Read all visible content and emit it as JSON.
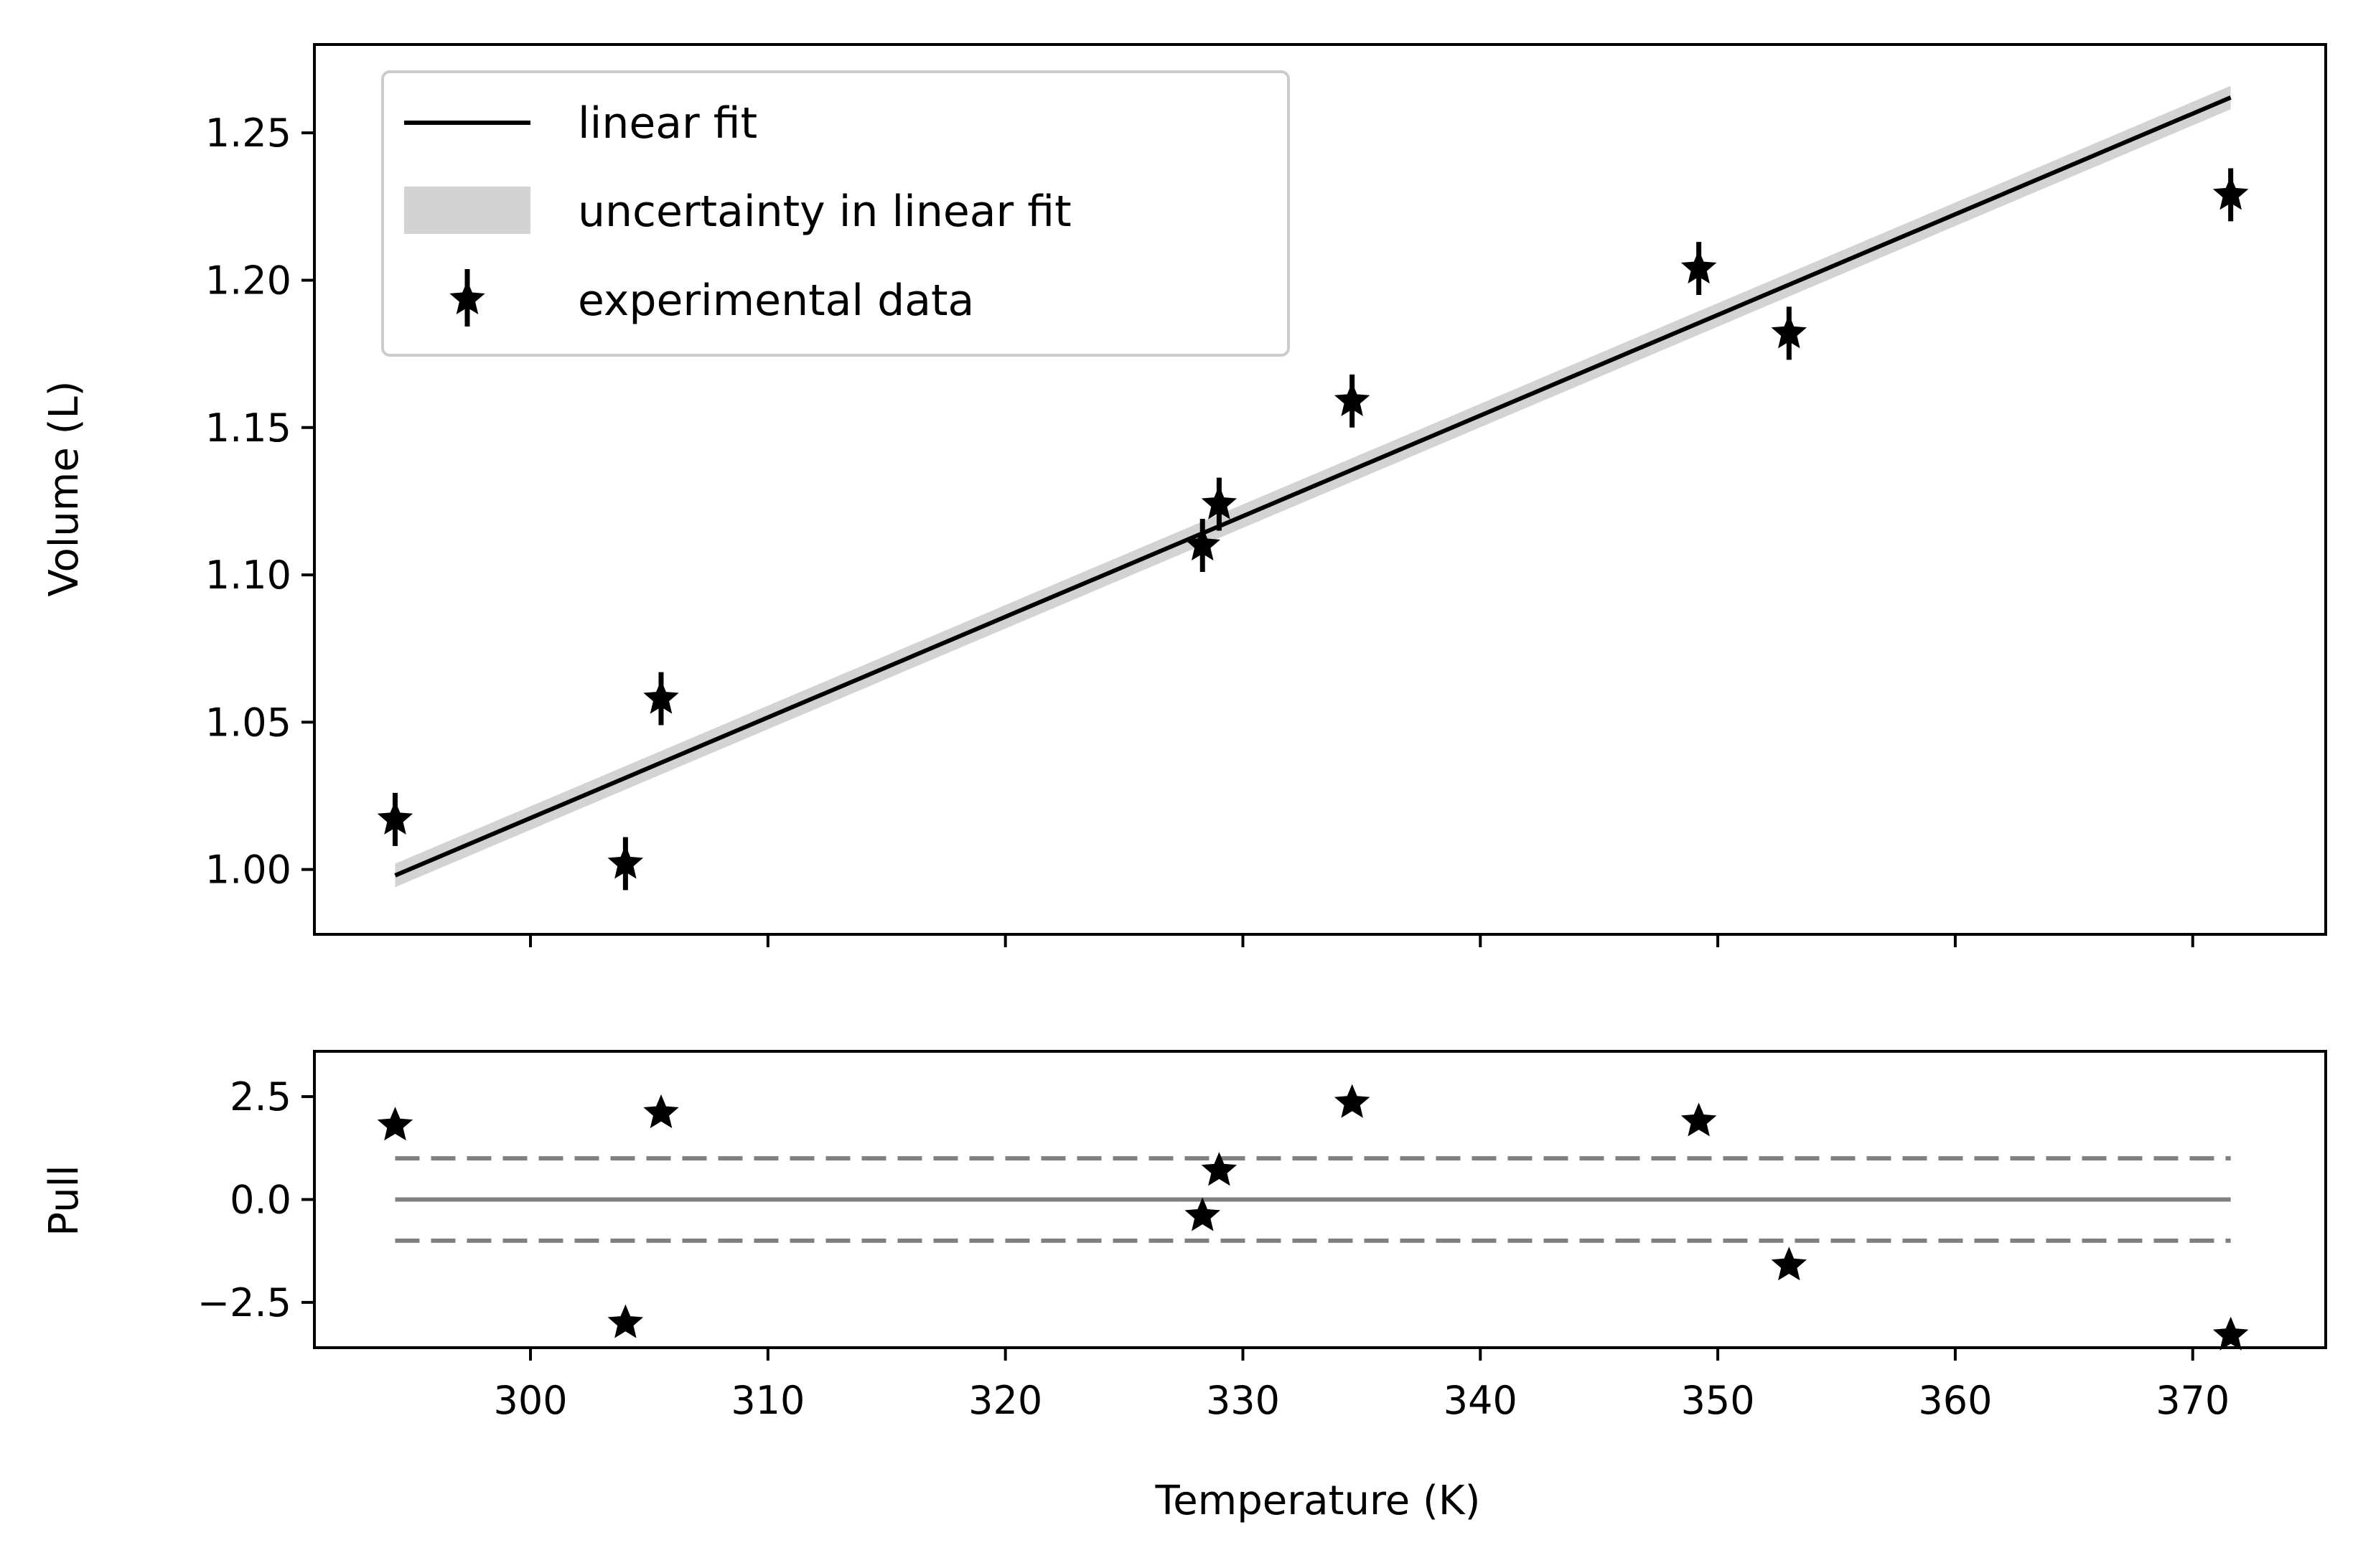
{
  "chart_data": [
    {
      "type": "scatter",
      "panel": "main",
      "xlabel": "",
      "ylabel": "Volume (L)",
      "xlim": [
        290.9,
        375.6
      ],
      "ylim": [
        0.978,
        1.28
      ],
      "yticks": [
        1.0,
        1.05,
        1.1,
        1.15,
        1.2,
        1.25
      ],
      "ytick_labels": [
        "1.00",
        "1.05",
        "1.10",
        "1.15",
        "1.20",
        "1.25"
      ],
      "xticks": [
        300,
        310,
        320,
        330,
        340,
        350,
        360,
        370
      ],
      "grid": false,
      "legend": {
        "placement": "upper-left",
        "entries": [
          "linear fit",
          "uncertainty in linear fit",
          "experimental data"
        ]
      },
      "fit": {
        "name": "linear fit",
        "x": [
          294.3,
          371.6
        ],
        "y": [
          0.998,
          1.262
        ],
        "band_halfwidth": 0.004,
        "color": "#000000",
        "band_color": "#d3d3d3"
      },
      "series": [
        {
          "name": "experimental data",
          "marker": "star",
          "color": "#000000",
          "x": [
            294.3,
            304.0,
            305.5,
            328.3,
            329.0,
            334.6,
            349.2,
            353.0,
            371.6
          ],
          "y": [
            1.017,
            1.002,
            1.058,
            1.11,
            1.124,
            1.159,
            1.204,
            1.182,
            1.229
          ],
          "yerr": [
            0.009,
            0.009,
            0.009,
            0.009,
            0.009,
            0.009,
            0.009,
            0.009,
            0.009
          ]
        }
      ]
    },
    {
      "type": "scatter",
      "panel": "pull",
      "xlabel": "Temperature (K)",
      "ylabel": "Pull",
      "xlim": [
        290.9,
        375.6
      ],
      "ylim": [
        -3.6,
        3.6
      ],
      "yticks": [
        -2.5,
        0.0,
        2.5
      ],
      "ytick_labels": [
        "−2.5",
        "0.0",
        "2.5"
      ],
      "xticks": [
        300,
        310,
        320,
        330,
        340,
        350,
        360,
        370
      ],
      "xtick_labels": [
        "300",
        "310",
        "320",
        "330",
        "340",
        "350",
        "360",
        "370"
      ],
      "grid": false,
      "reference_lines": {
        "solid": 0.0,
        "dashed": [
          1.0,
          -1.0
        ],
        "x": [
          294.3,
          371.6
        ],
        "color": "#808080"
      },
      "series": [
        {
          "name": "",
          "marker": "star",
          "color": "#000000",
          "x": [
            294.3,
            304.0,
            305.5,
            328.3,
            329.0,
            334.6,
            349.2,
            353.0,
            371.6
          ],
          "y": [
            1.8,
            -3.0,
            2.1,
            -0.4,
            0.7,
            2.35,
            1.9,
            -1.6,
            -3.3
          ]
        }
      ]
    }
  ]
}
